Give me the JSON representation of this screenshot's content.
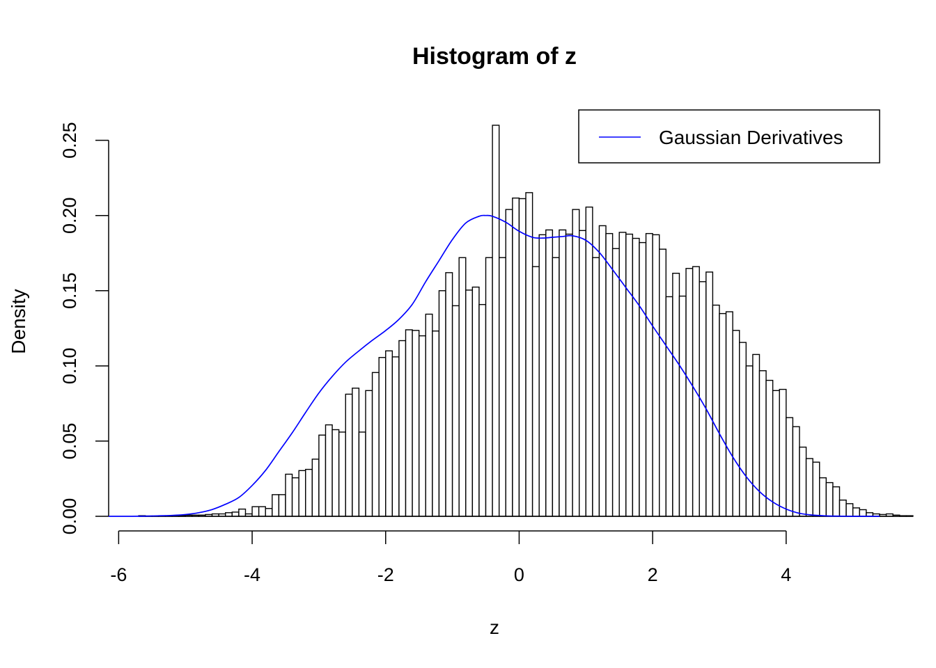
{
  "chart_data": {
    "type": "bar",
    "title": "Histogram of z",
    "xlabel": "z",
    "ylabel": "Density",
    "xlim": [
      -6.15,
      5.4
    ],
    "ylim": [
      0,
      0.26
    ],
    "x_ticks": [
      -6,
      -4,
      -2,
      0,
      2,
      4
    ],
    "x_tick_labels": [
      "-6",
      "-4",
      "-2",
      "0",
      "2",
      "4"
    ],
    "y_ticks": [
      0,
      0.05,
      0.1,
      0.15,
      0.2,
      0.25
    ],
    "y_tick_labels": [
      "0.00",
      "0.05",
      "0.10",
      "0.15",
      "0.20",
      "0.25"
    ],
    "grid": false,
    "legend_position": "top-right",
    "bins": {
      "start": -5.7,
      "width": 0.1,
      "densities": [
        0.0004,
        0.0002,
        0.0002,
        0.0004,
        0.0004,
        0.0004,
        0.0006,
        0.0008,
        0.0008,
        0.0008,
        0.0012,
        0.0016,
        0.0016,
        0.0024,
        0.0028,
        0.0048,
        0.0016,
        0.0064,
        0.0064,
        0.0052,
        0.0144,
        0.0144,
        0.028,
        0.0256,
        0.0304,
        0.0312,
        0.038,
        0.054,
        0.0608,
        0.0576,
        0.056,
        0.0812,
        0.0852,
        0.056,
        0.0836,
        0.0956,
        0.1056,
        0.11,
        0.106,
        0.1168,
        0.124,
        0.1236,
        0.12,
        0.1344,
        0.1232,
        0.15,
        0.162,
        0.14,
        0.172,
        0.1504,
        0.1524,
        0.1408,
        0.172,
        0.26,
        0.172,
        0.204,
        0.2116,
        0.2112,
        0.2152,
        0.166,
        0.1872,
        0.1904,
        0.172,
        0.1904,
        0.1876,
        0.204,
        0.19,
        0.2056,
        0.172,
        0.1932,
        0.188,
        0.178,
        0.1888,
        0.1876,
        0.1848,
        0.182,
        0.188,
        0.1872,
        0.1776,
        0.146,
        0.1616,
        0.1464,
        0.1648,
        0.166,
        0.156,
        0.1624,
        0.1404,
        0.1348,
        0.136,
        0.1236,
        0.1156,
        0.1,
        0.1076,
        0.0968,
        0.0904,
        0.0836,
        0.0844,
        0.0656,
        0.0596,
        0.046,
        0.0384,
        0.036,
        0.0256,
        0.0224,
        0.0196,
        0.0108,
        0.0084,
        0.0056,
        0.0044,
        0.0024,
        0.0016,
        0.0012,
        0.0016,
        0.0008,
        0.0004,
        0.0004
      ]
    },
    "series": [
      {
        "name": "Gaussian Derivatives",
        "color": "#0000ff",
        "x": [
          -6.15,
          -5.8,
          -5.5,
          -5.2,
          -5.0,
          -4.8,
          -4.6,
          -4.4,
          -4.2,
          -4.0,
          -3.8,
          -3.6,
          -3.4,
          -3.2,
          -3.0,
          -2.8,
          -2.6,
          -2.4,
          -2.2,
          -2.0,
          -1.8,
          -1.6,
          -1.4,
          -1.2,
          -1.0,
          -0.8,
          -0.6,
          -0.5,
          -0.4,
          -0.2,
          0.0,
          0.2,
          0.35,
          0.5,
          0.65,
          0.8,
          1.0,
          1.2,
          1.4,
          1.6,
          1.8,
          2.0,
          2.2,
          2.4,
          2.6,
          2.8,
          3.0,
          3.2,
          3.4,
          3.6,
          3.8,
          4.0,
          4.2,
          4.4,
          4.6,
          4.8,
          5.0,
          5.4
        ],
        "y": [
          0.0,
          0.0,
          0.0002,
          0.0006,
          0.0012,
          0.0024,
          0.0045,
          0.008,
          0.0125,
          0.0205,
          0.0305,
          0.043,
          0.0555,
          0.069,
          0.082,
          0.093,
          0.1025,
          0.11,
          0.117,
          0.1235,
          0.131,
          0.141,
          0.156,
          0.17,
          0.184,
          0.195,
          0.1995,
          0.2,
          0.1995,
          0.1955,
          0.1895,
          0.1855,
          0.185,
          0.1855,
          0.186,
          0.1865,
          0.1835,
          0.1755,
          0.164,
          0.152,
          0.14,
          0.1265,
          0.1135,
          0.1005,
          0.0865,
          0.0715,
          0.055,
          0.0395,
          0.0265,
          0.0165,
          0.0095,
          0.0048,
          0.002,
          0.0008,
          0.0003,
          0.0001,
          0.0,
          0.0
        ]
      }
    ]
  }
}
